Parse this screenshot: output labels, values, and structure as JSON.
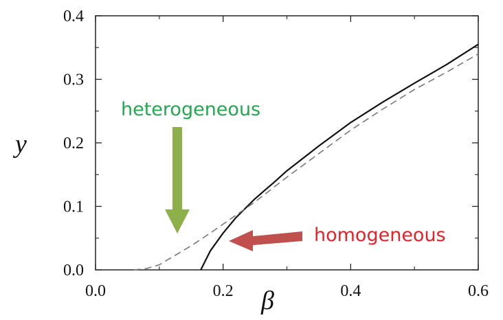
{
  "chart_data": {
    "type": "line",
    "xlabel": "β",
    "ylabel": "y",
    "xlim": [
      0.0,
      0.6
    ],
    "ylim": [
      0.0,
      0.4
    ],
    "x_ticks": [
      0.0,
      0.2,
      0.4,
      0.6
    ],
    "x_tick_labels": [
      "0.0",
      "0.2",
      "0.4",
      "0.6"
    ],
    "y_ticks": [
      0.0,
      0.1,
      0.2,
      0.3,
      0.4
    ],
    "y_tick_labels": [
      "0.0",
      "0.1",
      "0.2",
      "0.3",
      "0.4"
    ],
    "grid": false,
    "series": [
      {
        "style": "solid",
        "color": "#111111",
        "x": [
          0.165,
          0.18,
          0.2,
          0.22,
          0.25,
          0.28,
          0.3,
          0.35,
          0.4,
          0.45,
          0.5,
          0.55,
          0.6
        ],
        "y": [
          0.0,
          0.03,
          0.058,
          0.082,
          0.112,
          0.138,
          0.156,
          0.195,
          0.232,
          0.264,
          0.294,
          0.323,
          0.355
        ]
      },
      {
        "style": "dashed",
        "color": "#777777",
        "x": [
          0.06,
          0.08,
          0.1,
          0.12,
          0.15,
          0.18,
          0.2,
          0.25,
          0.3,
          0.35,
          0.4,
          0.45,
          0.5,
          0.55,
          0.6
        ],
        "y": [
          0.0,
          0.002,
          0.008,
          0.02,
          0.038,
          0.058,
          0.072,
          0.107,
          0.146,
          0.183,
          0.22,
          0.253,
          0.284,
          0.311,
          0.34
        ]
      }
    ],
    "annotations": [
      {
        "text": "heterogeneous",
        "color": "#22a950",
        "arrow_color": "#8db04a",
        "arrow_direction": "down"
      },
      {
        "text": "homogeneous",
        "color": "#e8202a",
        "arrow_color": "#c0504d",
        "arrow_direction": "left"
      }
    ]
  }
}
